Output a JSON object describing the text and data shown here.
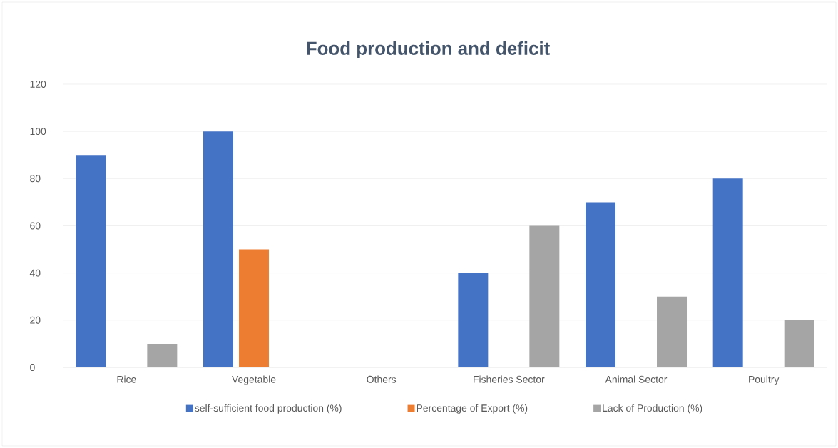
{
  "chart_data": {
    "type": "bar",
    "title": "Food production and deficit",
    "categories": [
      "Rice",
      "Vegetable",
      "Others",
      "Fisheries Sector",
      "Animal Sector",
      "Poultry"
    ],
    "series": [
      {
        "name": "self-sufficient food production (%)",
        "color": "#4472c4",
        "values": [
          90,
          100,
          null,
          40,
          70,
          80
        ]
      },
      {
        "name": "Percentage of Export (%)",
        "color": "#ed7d31",
        "values": [
          null,
          50,
          null,
          null,
          null,
          null
        ]
      },
      {
        "name": "Lack of Production (%)",
        "color": "#a5a5a5",
        "values": [
          10,
          null,
          null,
          60,
          30,
          20
        ]
      }
    ],
    "ylim": [
      0,
      120
    ],
    "yticks": [
      0,
      20,
      40,
      60,
      80,
      100,
      120
    ],
    "grid": "y",
    "legend": "bottom"
  }
}
